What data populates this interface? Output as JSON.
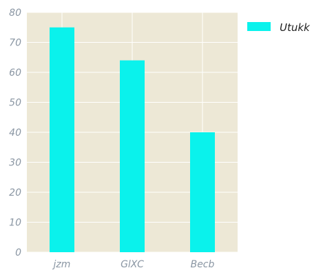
{
  "chart_data": {
    "type": "bar",
    "categories": [
      "jzm",
      "GlXC",
      "Becb"
    ],
    "series": [
      {
        "name": "Utukk",
        "values": [
          75,
          64,
          40
        ]
      }
    ],
    "ylim": [
      0,
      80
    ],
    "yticks": [
      "0",
      "10",
      "20",
      "30",
      "40",
      "50",
      "60",
      "70",
      "80"
    ],
    "grid": true,
    "legend_position": "top-right, outside plot",
    "colors": {
      "bar": "#0af2ec",
      "plot_background": "#ede8d6",
      "grid": "#ffffff",
      "tick_text": "#8a96a3"
    }
  }
}
